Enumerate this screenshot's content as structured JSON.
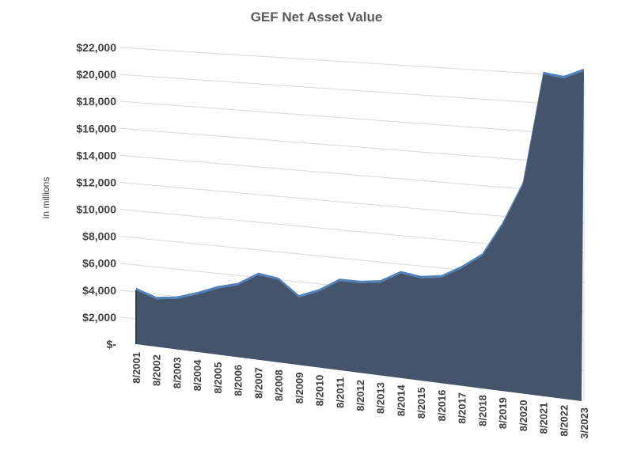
{
  "chart_data": {
    "type": "area",
    "title": "GEF Net Asset Value",
    "ylabel": "in millions",
    "xlabel": "",
    "ylim": [
      0,
      22000
    ],
    "yticks": [
      0,
      2000,
      4000,
      6000,
      8000,
      10000,
      12000,
      14000,
      16000,
      18000,
      20000,
      22000
    ],
    "ytick_labels": [
      "$-",
      "$2,000",
      "$4,000",
      "$6,000",
      "$8,000",
      "$10,000",
      "$12,000",
      "$14,000",
      "$16,000",
      "$18,000",
      "$20,000",
      "$22,000"
    ],
    "categories": [
      "8/2001",
      "8/2002",
      "8/2003",
      "8/2004",
      "8/2005",
      "8/2006",
      "8/2007",
      "8/2008",
      "8/2009",
      "8/2010",
      "8/2011",
      "8/2012",
      "8/2013",
      "8/2014",
      "8/2015",
      "8/2016",
      "8/2017",
      "8/2018",
      "8/2019",
      "8/2020",
      "8/2021",
      "8/2022",
      "3/2023"
    ],
    "values": [
      4000,
      3500,
      3700,
      4200,
      4800,
      5200,
      6100,
      5900,
      4800,
      5400,
      6300,
      6300,
      6500,
      7300,
      7100,
      7300,
      8100,
      9100,
      11400,
      14300,
      22000,
      21800,
      22400
    ],
    "grid": true,
    "legend": "none",
    "colors": {
      "area": "#44546a",
      "top_edge": "#4f81bd",
      "grid": "#d9d9d9",
      "text": "#404040",
      "title": "#595959"
    }
  }
}
